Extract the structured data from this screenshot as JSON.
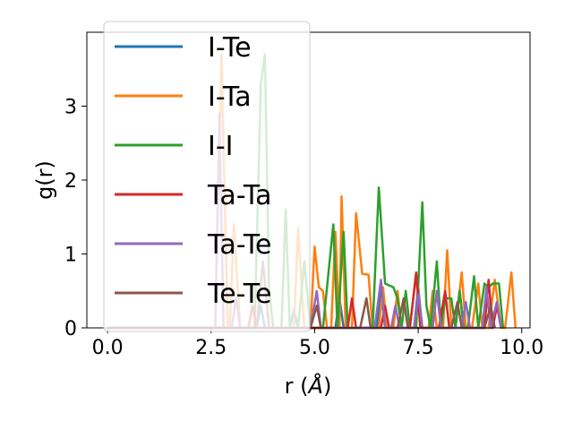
{
  "chart_data": {
    "type": "line",
    "xlabel_text": "r (",
    "xlabel_unit": "Å",
    "xlabel_close": ")",
    "ylabel": "g(r)",
    "xlim": [
      -0.5,
      10.2
    ],
    "ylim": [
      0,
      4.0
    ],
    "xticks": [
      0.0,
      2.5,
      5.0,
      7.5,
      10.0
    ],
    "xtick_labels": [
      "0.0",
      "2.5",
      "5.0",
      "7.5",
      "10.0"
    ],
    "yticks": [
      0,
      1,
      2,
      3
    ],
    "ytick_labels": [
      "0",
      "1",
      "2",
      "3"
    ],
    "grid": false,
    "legend_position": "upper left",
    "series": [
      {
        "name": "I-Te",
        "color": "#1f77b4",
        "points": [
          [
            0,
            0
          ],
          [
            3.6,
            0
          ],
          [
            3.7,
            0.3
          ],
          [
            3.8,
            0
          ],
          [
            4.4,
            0
          ],
          [
            4.5,
            0.25
          ],
          [
            4.6,
            0
          ],
          [
            5.5,
            0
          ],
          [
            5.6,
            0.4
          ],
          [
            5.7,
            0
          ],
          [
            6.5,
            0
          ],
          [
            6.6,
            0.55
          ],
          [
            6.7,
            0
          ],
          [
            7.4,
            0
          ],
          [
            7.5,
            0.55
          ],
          [
            7.6,
            0
          ],
          [
            8.4,
            0
          ],
          [
            8.5,
            0.5
          ],
          [
            8.6,
            0
          ],
          [
            9.3,
            0
          ],
          [
            9.4,
            0.35
          ],
          [
            9.5,
            0
          ]
        ]
      },
      {
        "name": "I-Ta",
        "color": "#ff7f0e",
        "points": [
          [
            0,
            0
          ],
          [
            2.6,
            0
          ],
          [
            2.75,
            3.7
          ],
          [
            2.9,
            0
          ],
          [
            2.95,
            0
          ],
          [
            3.05,
            1.4
          ],
          [
            3.2,
            0
          ],
          [
            4.5,
            0
          ],
          [
            4.6,
            1.35
          ],
          [
            4.75,
            0
          ],
          [
            4.9,
            0
          ],
          [
            5.0,
            1.1
          ],
          [
            5.1,
            0.55
          ],
          [
            5.2,
            0.5
          ],
          [
            5.3,
            0
          ],
          [
            5.4,
            0
          ],
          [
            5.5,
            1.3
          ],
          [
            5.6,
            0
          ],
          [
            5.65,
            1.78
          ],
          [
            5.75,
            0
          ],
          [
            5.9,
            0
          ],
          [
            6.0,
            1.55
          ],
          [
            6.15,
            0.73
          ],
          [
            6.3,
            0.72
          ],
          [
            6.4,
            0
          ],
          [
            6.55,
            0
          ],
          [
            6.65,
            0.55
          ],
          [
            6.75,
            0
          ],
          [
            6.9,
            0
          ],
          [
            7.0,
            0.5
          ],
          [
            7.1,
            0
          ],
          [
            7.3,
            0
          ],
          [
            7.45,
            0.73
          ],
          [
            7.6,
            0
          ],
          [
            7.75,
            0
          ],
          [
            7.85,
            0.5
          ],
          [
            7.95,
            0
          ],
          [
            8.1,
            0
          ],
          [
            8.2,
            1.05
          ],
          [
            8.3,
            0
          ],
          [
            8.4,
            0
          ],
          [
            8.55,
            0.75
          ],
          [
            8.65,
            0
          ],
          [
            8.8,
            0
          ],
          [
            8.95,
            0.6
          ],
          [
            9.05,
            0
          ],
          [
            9.2,
            0
          ],
          [
            9.35,
            0.65
          ],
          [
            9.5,
            0
          ],
          [
            9.6,
            0
          ],
          [
            9.75,
            0.75
          ],
          [
            9.85,
            0
          ]
        ]
      },
      {
        "name": "I-I",
        "color": "#2ca02c",
        "points": [
          [
            0,
            0
          ],
          [
            3.55,
            0
          ],
          [
            3.7,
            3.3
          ],
          [
            3.8,
            3.7
          ],
          [
            3.9,
            0.5
          ],
          [
            4.0,
            0
          ],
          [
            4.2,
            0
          ],
          [
            4.3,
            1.6
          ],
          [
            4.4,
            0
          ],
          [
            4.6,
            0
          ],
          [
            4.75,
            0.9
          ],
          [
            4.9,
            0
          ],
          [
            5.2,
            0
          ],
          [
            5.45,
            1.4
          ],
          [
            5.55,
            0
          ],
          [
            5.7,
            1.3
          ],
          [
            5.8,
            0
          ],
          [
            6.4,
            0
          ],
          [
            6.55,
            1.9
          ],
          [
            6.7,
            0.6
          ],
          [
            6.9,
            0.55
          ],
          [
            7.0,
            0.4
          ],
          [
            7.1,
            0
          ],
          [
            7.2,
            0.5
          ],
          [
            7.3,
            0
          ],
          [
            7.45,
            0
          ],
          [
            7.6,
            1.7
          ],
          [
            7.7,
            0.3
          ],
          [
            7.8,
            0
          ],
          [
            7.95,
            0.9
          ],
          [
            8.05,
            0
          ],
          [
            8.15,
            0.4
          ],
          [
            8.3,
            0.4
          ],
          [
            8.4,
            0
          ],
          [
            8.5,
            0.5
          ],
          [
            8.6,
            0
          ],
          [
            8.7,
            0
          ],
          [
            8.85,
            0.7
          ],
          [
            8.95,
            0
          ],
          [
            9.1,
            0.6
          ],
          [
            9.2,
            0.55
          ],
          [
            9.3,
            0.6
          ],
          [
            9.45,
            0.6
          ],
          [
            9.55,
            0
          ]
        ]
      },
      {
        "name": "Ta-Ta",
        "color": "#d62728",
        "points": [
          [
            0,
            0
          ],
          [
            3.4,
            0
          ],
          [
            3.5,
            0.3
          ],
          [
            3.6,
            0
          ],
          [
            5.8,
            0
          ],
          [
            5.9,
            0.4
          ],
          [
            6.0,
            0
          ],
          [
            6.6,
            0
          ],
          [
            6.7,
            0.3
          ],
          [
            6.8,
            0
          ],
          [
            7.3,
            0
          ],
          [
            7.45,
            0.75
          ],
          [
            7.55,
            0
          ],
          [
            8.0,
            0
          ],
          [
            8.15,
            0.5
          ],
          [
            8.25,
            0
          ],
          [
            9.1,
            0
          ],
          [
            9.2,
            0.65
          ],
          [
            9.3,
            0
          ],
          [
            9.4,
            0.3
          ],
          [
            9.5,
            0
          ]
        ]
      },
      {
        "name": "Ta-Te",
        "color": "#9467bd",
        "points": [
          [
            0,
            0
          ],
          [
            2.6,
            0
          ],
          [
            2.7,
            2.9
          ],
          [
            2.8,
            0
          ],
          [
            3.0,
            0
          ],
          [
            3.1,
            0.4
          ],
          [
            3.2,
            0
          ],
          [
            4.9,
            0
          ],
          [
            5.05,
            0.5
          ],
          [
            5.15,
            0
          ],
          [
            6.45,
            0
          ],
          [
            6.6,
            0.65
          ],
          [
            6.7,
            0
          ],
          [
            6.85,
            0
          ],
          [
            6.95,
            0.3
          ],
          [
            7.05,
            0
          ],
          [
            7.4,
            0
          ],
          [
            7.5,
            0.45
          ],
          [
            7.6,
            0
          ],
          [
            7.85,
            0
          ],
          [
            7.95,
            0.5
          ],
          [
            8.05,
            0
          ],
          [
            8.55,
            0
          ],
          [
            8.65,
            0.35
          ],
          [
            8.75,
            0
          ],
          [
            9.05,
            0
          ],
          [
            9.15,
            0.55
          ],
          [
            9.25,
            0
          ],
          [
            9.4,
            0.35
          ],
          [
            9.5,
            0
          ]
        ]
      },
      {
        "name": "Te-Te",
        "color": "#8c564b",
        "points": [
          [
            0,
            0
          ],
          [
            3.6,
            0
          ],
          [
            3.75,
            0.9
          ],
          [
            3.9,
            0
          ],
          [
            4.9,
            0
          ],
          [
            5.05,
            0.3
          ],
          [
            5.15,
            0
          ],
          [
            6.1,
            0
          ],
          [
            6.25,
            0.4
          ],
          [
            6.35,
            0
          ],
          [
            7.0,
            0
          ],
          [
            7.15,
            0.4
          ],
          [
            7.25,
            0
          ],
          [
            8.3,
            0
          ],
          [
            8.45,
            0.35
          ],
          [
            8.55,
            0
          ],
          [
            9.1,
            0
          ],
          [
            9.25,
            0.3
          ],
          [
            9.35,
            0
          ]
        ]
      }
    ]
  }
}
